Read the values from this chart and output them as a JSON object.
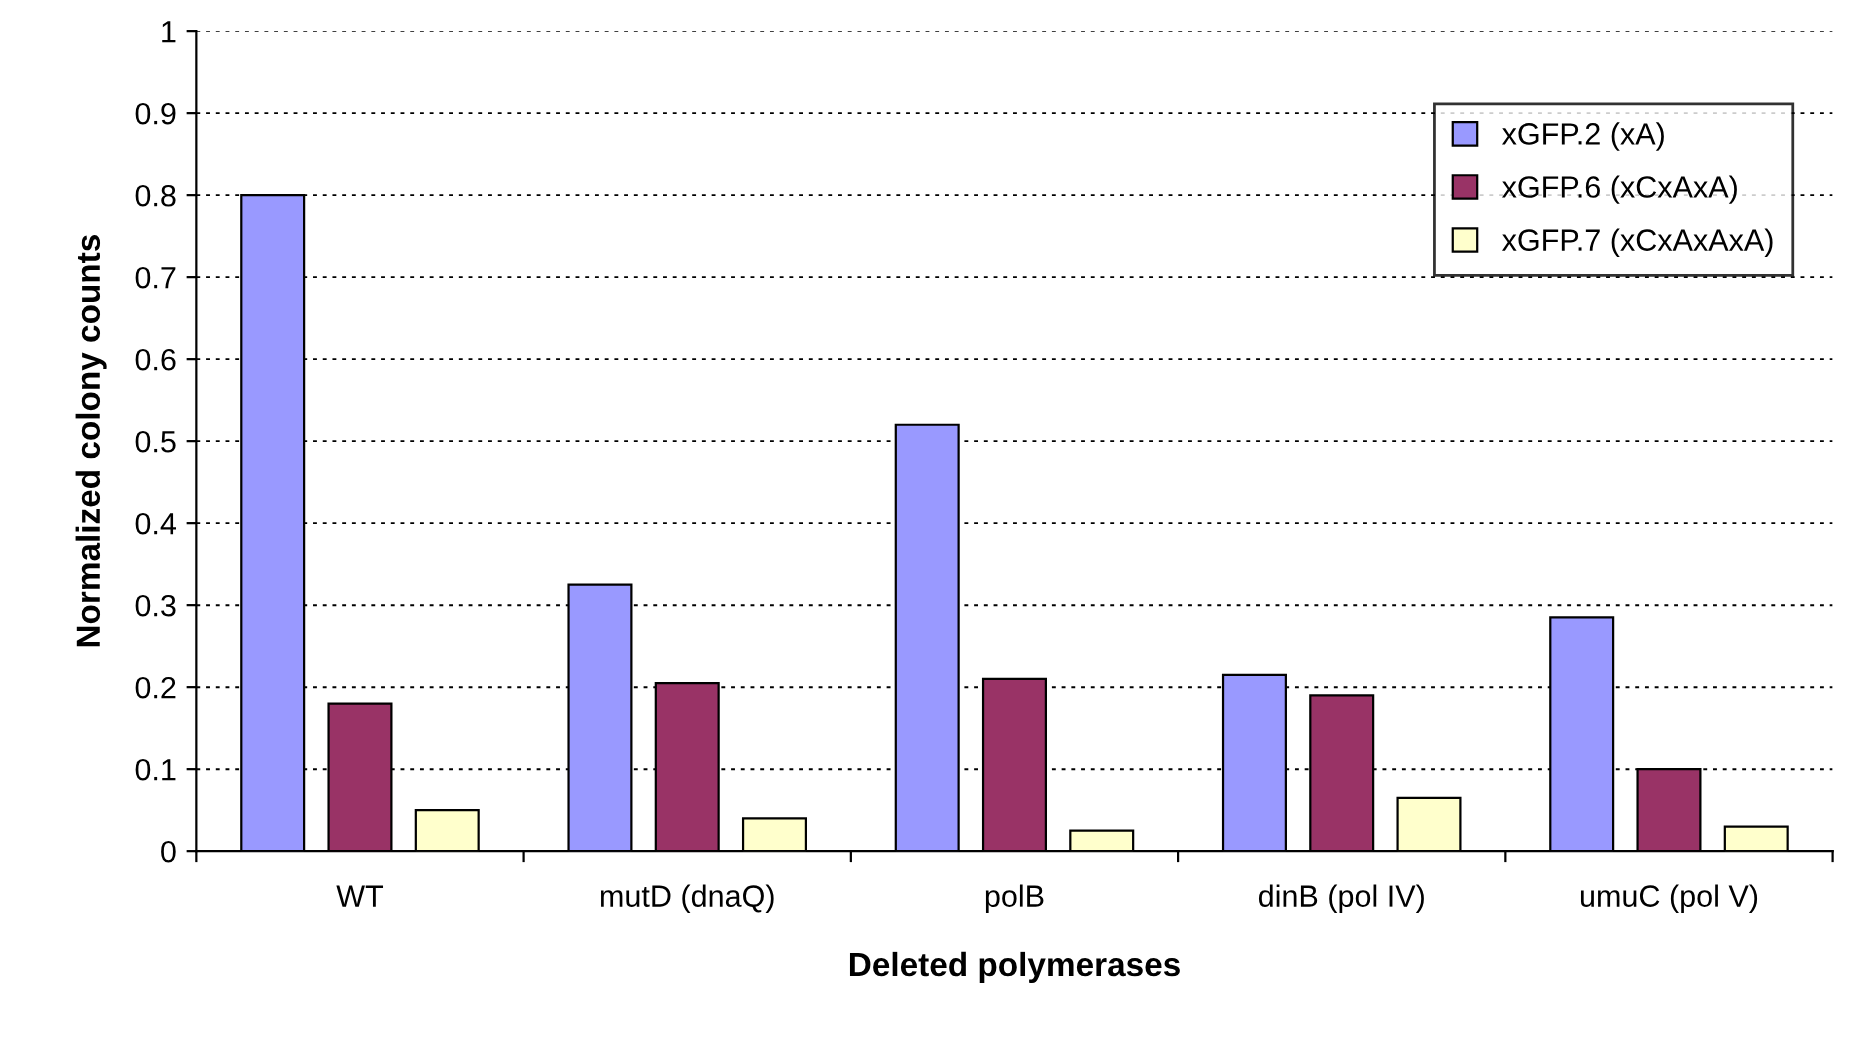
{
  "chart_data": {
    "type": "bar",
    "xlabel": "Deleted polymerases",
    "ylabel": "Normalized colony counts",
    "categories": [
      "WT",
      "mutD (dnaQ)",
      "polB",
      "dinB (pol IV)",
      "umuC (pol V)"
    ],
    "series": [
      {
        "name": "xGFP.2 (xA)",
        "color": "#9999ff",
        "values": [
          0.8,
          0.325,
          0.52,
          0.215,
          0.285
        ]
      },
      {
        "name": "xGFP.6 (xCxAxA)",
        "color": "#993366",
        "values": [
          0.18,
          0.205,
          0.21,
          0.19,
          0.1
        ]
      },
      {
        "name": "xGFP.7 (xCxAxAxA)",
        "color": "#ffffcc",
        "values": [
          0.05,
          0.04,
          0.025,
          0.065,
          0.03
        ]
      }
    ],
    "ylim": [
      0,
      1
    ],
    "yticks": [
      0,
      0.1,
      0.2,
      0.3,
      0.4,
      0.5,
      0.6,
      0.7,
      0.8,
      0.9,
      1
    ],
    "grid": "y",
    "legend": "top right"
  }
}
